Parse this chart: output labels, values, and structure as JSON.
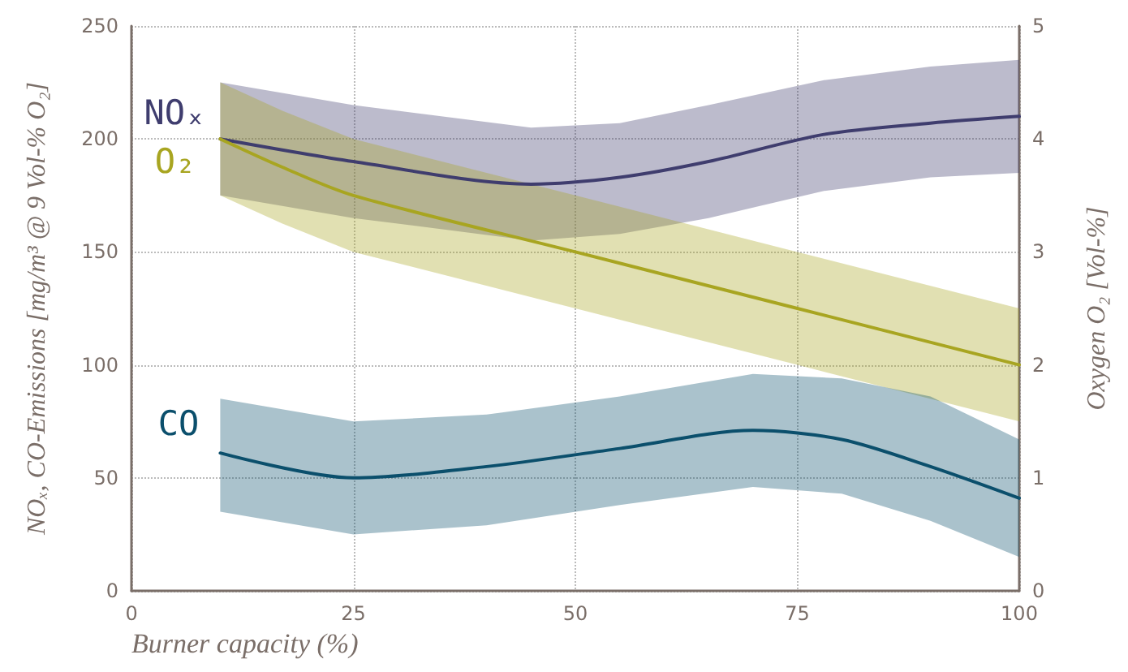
{
  "chart_data": {
    "type": "line",
    "xlabel": "Burner capacity (%)",
    "ylabel": "NOₓ, CO-Emissions [mg/m³ @ 9 Vol-% O₂]",
    "y2label": "Oxygen O₂ [Vol-%]",
    "xlim": [
      0,
      100
    ],
    "xticks": [
      0,
      25,
      50,
      75,
      100
    ],
    "ylim": [
      0,
      250
    ],
    "yticks": [
      0,
      50,
      100,
      150,
      200,
      250
    ],
    "y2lim": [
      0,
      5
    ],
    "y2ticks": [
      0,
      1,
      2,
      3,
      4,
      5
    ],
    "grid": true,
    "legend": false,
    "marker": "none",
    "series": [
      {
        "name": "NOₓ",
        "color": "#3f3d6e",
        "x": [
          10,
          25,
          45,
          55,
          65,
          78,
          90,
          100
        ],
        "values": [
          200,
          190,
          180,
          183,
          190,
          202,
          207,
          210
        ],
        "lower": [
          175,
          165,
          155,
          158,
          165,
          177,
          183,
          185
        ],
        "upper": [
          225,
          215,
          205,
          207,
          215,
          226,
          232,
          235
        ]
      },
      {
        "name": "O₂",
        "color": "#a8a521",
        "axis": "y2",
        "x": [
          10,
          17,
          25,
          50,
          75,
          100
        ],
        "values": [
          4.0,
          3.75,
          3.5,
          3.0,
          2.5,
          2.0
        ],
        "lower": [
          3.5,
          3.25,
          3.0,
          2.5,
          2.0,
          1.5
        ],
        "upper": [
          4.5,
          4.25,
          4.0,
          3.5,
          3.0,
          2.5
        ]
      },
      {
        "name": "CO",
        "color": "#0b4f6c",
        "x": [
          10,
          25,
          40,
          55,
          70,
          80,
          90,
          100
        ],
        "values": [
          61,
          50,
          55,
          63,
          71,
          67,
          55,
          41
        ],
        "lower": [
          35,
          25,
          29,
          38,
          46,
          43,
          31,
          15
        ],
        "upper": [
          85,
          75,
          78,
          86,
          96,
          94,
          86,
          67
        ]
      }
    ]
  }
}
